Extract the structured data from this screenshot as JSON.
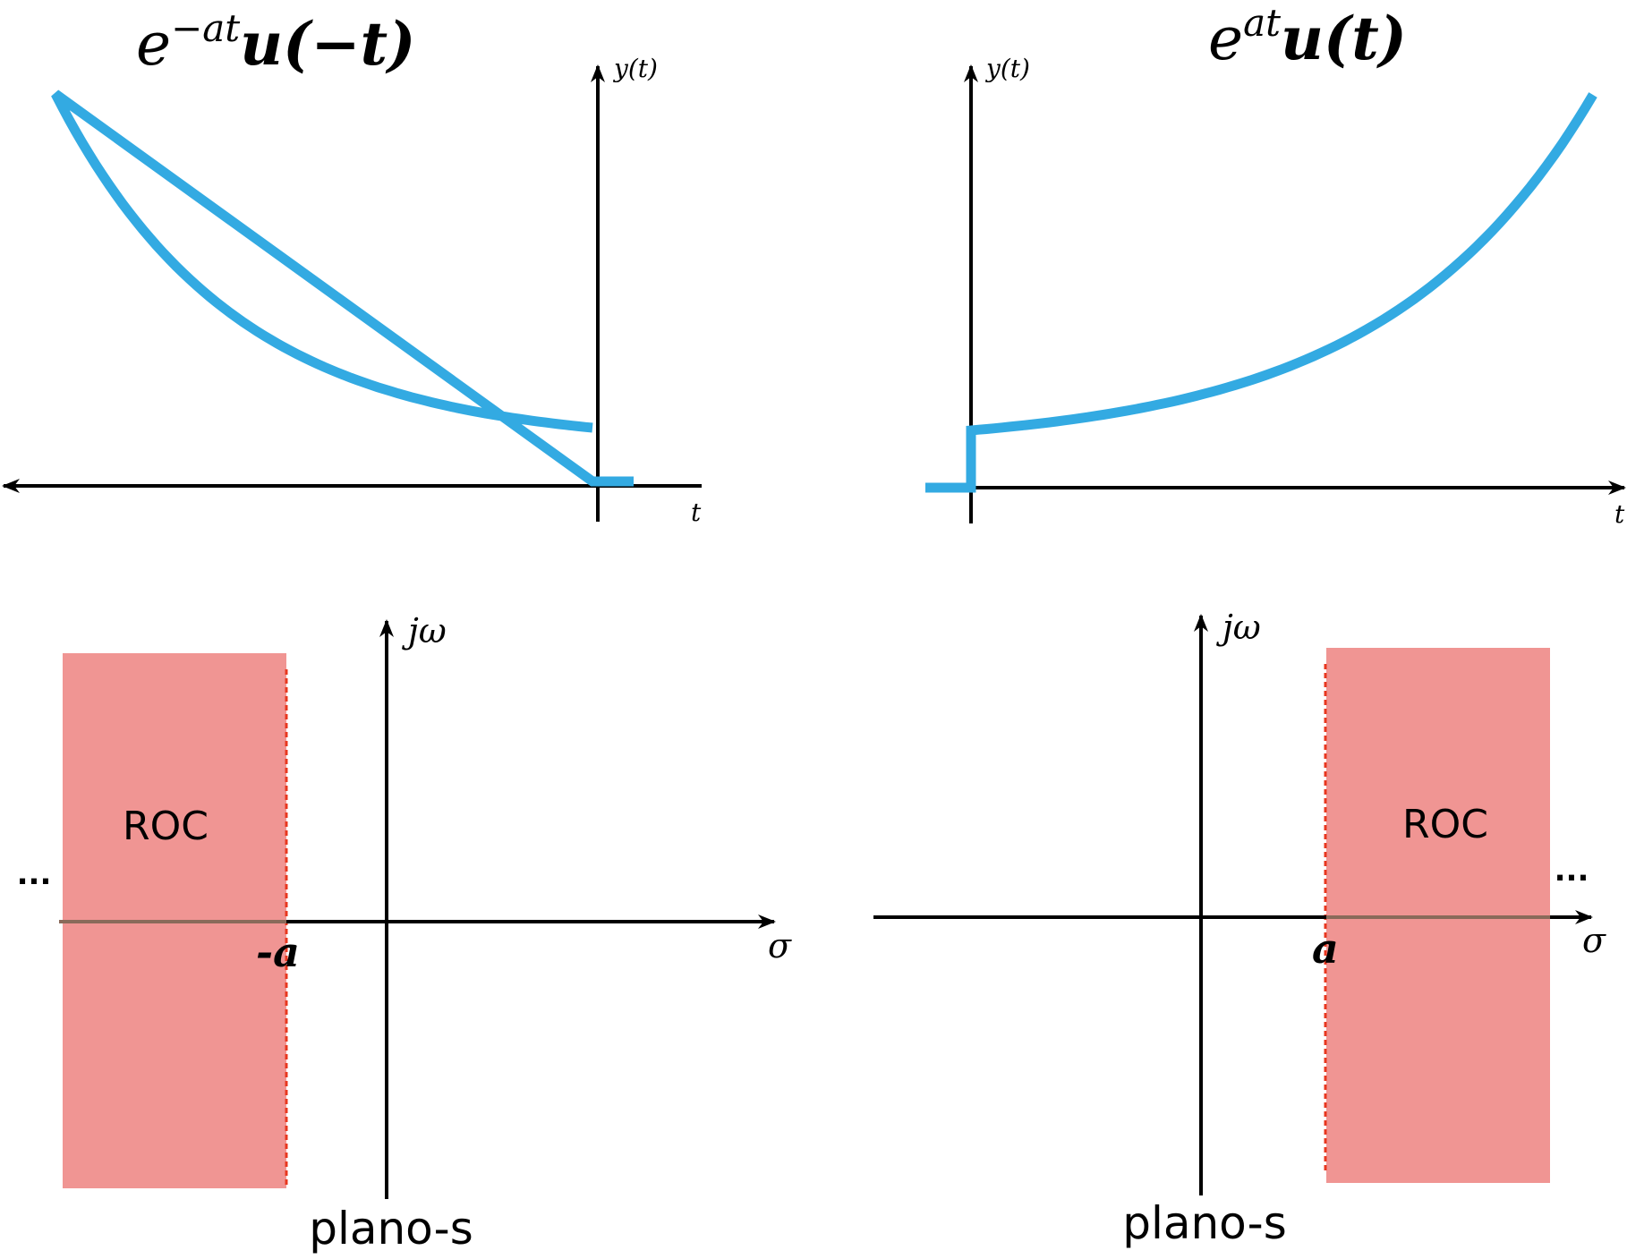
{
  "colors": {
    "curve": "#33aae2",
    "roc_fill": "#f09593",
    "roc_edge": "#e8371f",
    "axis": "#000000"
  },
  "top_left": {
    "title_base": "e",
    "title_exp": "−at",
    "title_rest": "u(−t)",
    "ylabel": "y(t)",
    "xlabel": "t"
  },
  "top_right": {
    "title_base": "e",
    "title_exp": "at",
    "title_rest": "u(t)",
    "ylabel": "y(t)",
    "xlabel": "t"
  },
  "bottom_left": {
    "roc_label": "ROC",
    "ellipsis": "...",
    "pole_label": "-a",
    "vaxis_label": "jω",
    "haxis_label": "σ",
    "plane_label": "plano-s"
  },
  "bottom_right": {
    "roc_label": "ROC",
    "ellipsis": "...",
    "pole_label": "a",
    "vaxis_label": "jω",
    "haxis_label": "σ",
    "plane_label": "plano-s"
  }
}
